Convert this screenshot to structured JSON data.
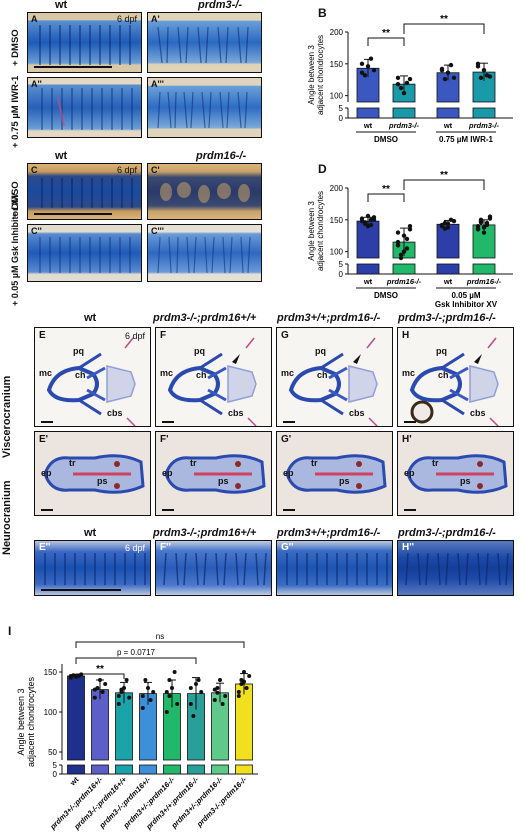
{
  "panels_top": {
    "wt": "wt",
    "prdm3": "prdm3-/-",
    "prdm16": "prdm16-/-",
    "dpf": "6 dpf",
    "A": "A",
    "A1": "A'",
    "A2": "A''",
    "A3": "A'''",
    "C": "C",
    "C1": "C'",
    "C2": "C''",
    "C3": "C'''",
    "dmso": "+ DMSO",
    "iwr": "+ 0.75 µM IWR-1",
    "gsk": "+ 0.05 µM Gsk Inhibitor XV"
  },
  "panel_B": {
    "letter": "B"
  },
  "panel_D": {
    "letter": "D"
  },
  "panel_E": {
    "headers": [
      "wt",
      "prdm3-/-;prdm16+/+",
      "prdm3+/+;prdm16-/-",
      "prdm3-/-;prdm16-/-"
    ],
    "row_labels": [
      "Viscerocranium",
      "Neurocranium"
    ],
    "dpf": "6 dpf",
    "letters_row1": [
      "E",
      "F",
      "G",
      "H"
    ],
    "letters_row2": [
      "E'",
      "F'",
      "G'",
      "H'"
    ],
    "letters_row3": [
      "E''",
      "F''",
      "G''",
      "H''"
    ],
    "visc_labels": {
      "mc": "mc",
      "pq": "pq",
      "ch": "ch",
      "cbs": "cbs"
    },
    "neuro_labels": {
      "ep": "ep",
      "tr": "tr",
      "ps": "ps"
    }
  },
  "panel_I": {
    "letter": "I"
  },
  "chart_data": [
    {
      "type": "bar",
      "ylabel": "Angle between 3 adjacent chondrocytes",
      "categories": [
        "wt",
        "prdm3-/-",
        "wt",
        "prdm3-/-"
      ],
      "groups": [
        "DMSO",
        "0.75 µM IWR-1"
      ],
      "values": [
        143,
        118,
        136,
        137
      ],
      "errors": [
        14,
        13,
        12,
        14
      ],
      "points": [
        [
          150,
          132,
          146,
          158,
          140,
          136
        ],
        [
          128,
          112,
          104,
          120,
          126,
          118
        ],
        [
          142,
          126,
          136,
          148,
          128,
          140
        ],
        [
          150,
          128,
          140,
          132,
          130,
          146
        ]
      ],
      "colors": [
        "#3a58c0",
        "#1a9aa8",
        "#3a58c0",
        "#1a9aa8"
      ],
      "yticks": [
        0,
        5,
        100,
        150,
        200
      ],
      "significance": [
        "**",
        "**"
      ]
    },
    {
      "type": "bar",
      "ylabel": "Angle between 3 adjacent chondrocytes",
      "categories": [
        "wt",
        "prdm16-/-",
        "wt",
        "prdm16-/-"
      ],
      "groups": [
        "DMSO",
        "0.05 µM Gsk Inhibitor XV"
      ],
      "values": [
        148,
        115,
        143,
        142
      ],
      "errors": [
        6,
        22,
        6,
        8
      ],
      "points": [
        [
          152,
          146,
          140,
          150,
          154,
          148,
          144,
          156,
          142,
          150
        ],
        [
          130,
          90,
          100,
          120,
          140,
          110,
          95,
          125,
          105,
          135,
          115
        ],
        [
          140,
          145,
          138,
          150,
          148,
          142,
          136,
          144
        ],
        [
          140,
          150,
          130,
          145,
          155,
          135,
          148,
          138,
          142,
          152,
          136,
          146
        ]
      ],
      "colors": [
        "#2c3ea8",
        "#22b86a",
        "#2c3ea8",
        "#22b86a"
      ],
      "yticks": [
        0,
        5,
        100,
        150,
        200
      ],
      "significance": [
        "**",
        "**"
      ]
    },
    {
      "type": "bar",
      "ylabel": "Angle between 3 adjacent chondrocytes",
      "categories": [
        "wt",
        "prdm3+/-;prdm16+/-",
        "prdm3-/-;prdm16+/+",
        "prdm3-/-;prdm16+/-",
        "prdm3+/-;prdm16-/-",
        "prdm3+/+;prdm16-/-",
        "prdm3+/-;prdm16-/-",
        "prdm3-/-;prdm16-/-"
      ],
      "values": [
        145,
        128,
        124,
        123,
        123,
        123,
        124,
        135
      ],
      "errors": [
        2,
        12,
        13,
        14,
        17,
        20,
        12,
        13
      ],
      "points": [
        [
          145,
          146,
          144,
          145,
          147,
          143
        ],
        [
          118,
          130,
          140,
          125,
          135,
          128
        ],
        [
          110,
          125,
          130,
          140,
          118,
          120,
          128
        ],
        [
          105,
          140,
          130,
          115,
          125,
          120
        ],
        [
          100,
          140,
          130,
          150,
          110,
          125,
          120
        ],
        [
          110,
          95,
          135,
          140,
          125,
          130
        ],
        [
          115,
          130,
          140,
          110,
          120,
          128,
          124
        ],
        [
          120,
          140,
          150,
          130,
          145,
          125,
          135,
          138
        ]
      ],
      "colors": [
        "#1e2f8c",
        "#5b5fc7",
        "#1aa3a8",
        "#3d8fd8",
        "#22b86a",
        "#2a9f9a",
        "#5fc98a",
        "#f0e020"
      ],
      "yticks": [
        0,
        5,
        50,
        100,
        150
      ],
      "annotations": [
        "ns",
        "p = 0.0717",
        "**"
      ]
    }
  ]
}
